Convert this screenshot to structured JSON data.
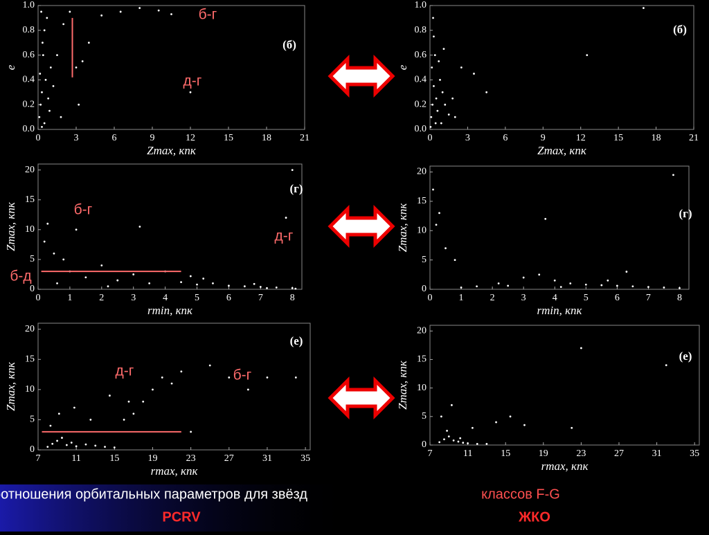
{
  "slide": {
    "title": "Соотношения орбитальных параметров для звёзд",
    "title_highlight": "классов F-G",
    "labels": [
      "PCRV",
      "ЖКО"
    ]
  },
  "chart_data": [
    {
      "type": "scatter",
      "panel": "(б)",
      "xlabel": "Zmax, кпк",
      "ylabel": "e",
      "color": "#ffffff",
      "xlim": [
        0,
        21
      ],
      "ylim": [
        0,
        1
      ],
      "xticks": [
        0,
        3,
        6,
        9,
        12,
        15,
        18,
        21
      ],
      "yticks": [
        {
          "value": 0,
          "label": "0.0"
        },
        0.2,
        0.4,
        0.6,
        0.8,
        {
          "value": 1,
          "label": "1.0"
        }
      ],
      "annotations": [
        "б-г",
        "д-г"
      ],
      "lines": [
        {
          "x": [
            2.7,
            2.7
          ],
          "y": [
            0.42,
            0.9
          ],
          "color": "#ff6b6b"
        }
      ],
      "x": [
        0.1,
        0.2,
        0.3,
        0.15,
        0.4,
        0.5,
        0.25,
        0.6,
        0.8,
        1.0,
        0.35,
        0.7,
        1.2,
        1.5,
        0.9,
        2.0,
        2.5,
        3.0,
        3.5,
        4.0,
        3.2,
        5.0,
        6.5,
        8.0,
        9.5,
        10.5,
        12.0,
        0.5,
        1.8,
        0.3
      ],
      "y": [
        0.1,
        0.2,
        0.3,
        0.45,
        0.6,
        0.8,
        0.95,
        0.4,
        0.25,
        0.5,
        0.7,
        0.9,
        0.35,
        0.6,
        0.15,
        0.85,
        0.95,
        0.5,
        0.55,
        0.7,
        0.2,
        0.92,
        0.95,
        0.98,
        0.96,
        0.93,
        0.3,
        0.05,
        0.1,
        0.02
      ]
    },
    {
      "type": "scatter",
      "panel": "(б)",
      "xlabel": "Zmax, кпк",
      "ylabel": "e",
      "color": "#ffffff",
      "xlim": [
        0,
        21
      ],
      "ylim": [
        0,
        1
      ],
      "xticks": [
        0,
        3,
        6,
        9,
        12,
        15,
        18,
        21
      ],
      "yticks": [
        {
          "value": 0,
          "label": "0.0"
        },
        0.2,
        0.4,
        0.6,
        0.8,
        {
          "value": 1,
          "label": "1.0"
        }
      ],
      "x": [
        0.1,
        0.2,
        0.3,
        0.15,
        0.4,
        0.5,
        0.6,
        0.8,
        1.0,
        1.2,
        1.5,
        2.0,
        0.3,
        0.7,
        2.5,
        3.5,
        0.9,
        1.1,
        0.25,
        4.5,
        12.5,
        17,
        0.05,
        0.45,
        1.8
      ],
      "y": [
        0.1,
        0.2,
        0.35,
        0.5,
        0.6,
        0.25,
        0.15,
        0.4,
        0.3,
        0.2,
        0.12,
        0.1,
        0.75,
        0.55,
        0.5,
        0.45,
        0.05,
        0.65,
        0.9,
        0.3,
        0.6,
        0.98,
        0.02,
        0.05,
        0.25
      ]
    },
    {
      "type": "scatter",
      "panel": "(г)",
      "xlabel": "rmin, кпк",
      "ylabel": "Zmax, кпк",
      "color": "#ffffff",
      "xlim": [
        0,
        8.3
      ],
      "ylim": [
        0,
        21
      ],
      "xticks": [
        0,
        1,
        2,
        3,
        4,
        5,
        6,
        7,
        8
      ],
      "yticks": [
        0,
        5,
        10,
        15,
        20
      ],
      "annotations": [
        "б-г",
        "д-г",
        "б-д"
      ],
      "lines": [
        {
          "x": [
            0.1,
            4.5
          ],
          "y": [
            3,
            3
          ],
          "color": "#ff6b6b"
        }
      ],
      "x": [
        0.2,
        0.5,
        1.0,
        1.5,
        2.0,
        2.5,
        3.0,
        3.5,
        4.0,
        4.5,
        5.0,
        5.5,
        6.0,
        6.5,
        7.0,
        7.5,
        8.0,
        8.1,
        0.3,
        0.8,
        1.2,
        3.2,
        7.8,
        6.8,
        5.2,
        4.8,
        2.2,
        0.6,
        7.2,
        8.0
      ],
      "y": [
        8,
        6,
        3,
        2,
        4,
        1.5,
        2.5,
        1,
        3,
        1.2,
        0.8,
        1.0,
        0.6,
        0.5,
        0.4,
        0.3,
        0.2,
        0.1,
        11,
        5,
        10,
        10.5,
        12,
        0.9,
        1.8,
        2.2,
        0.5,
        1,
        0.2,
        20
      ]
    },
    {
      "type": "scatter",
      "panel": "(г)",
      "xlabel": "rmin, кпк",
      "ylabel": "Zmax, кпк",
      "color": "#ffffff",
      "xlim": [
        0,
        8.3
      ],
      "ylim": [
        0,
        21
      ],
      "xticks": [
        0,
        1,
        2,
        3,
        4,
        5,
        6,
        7,
        8
      ],
      "yticks": [
        0,
        5,
        10,
        15,
        20
      ],
      "x": [
        0.1,
        0.3,
        0.5,
        0.8,
        1.5,
        2.2,
        3.0,
        3.5,
        4.0,
        4.5,
        5.0,
        5.5,
        6.0,
        6.5,
        7.0,
        7.5,
        8.0,
        0.2,
        2.5,
        3.7,
        5.7,
        7.8,
        4.2,
        6.3,
        1.0
      ],
      "y": [
        17,
        13,
        7,
        5,
        0.5,
        1,
        2,
        2.5,
        1.5,
        1,
        0.8,
        0.7,
        0.6,
        0.5,
        0.4,
        0.3,
        0.2,
        11,
        0.6,
        12,
        1.5,
        19.5,
        0.4,
        3,
        0.3
      ]
    },
    {
      "type": "scatter",
      "panel": "(е)",
      "xlabel": "rmax, кпк",
      "ylabel": "Zmax, кпк",
      "color": "#ffffff",
      "xlim": [
        7,
        35.5
      ],
      "ylim": [
        0,
        21
      ],
      "xticks": [
        7,
        11,
        15,
        19,
        23,
        27,
        31,
        35
      ],
      "yticks": [
        0,
        5,
        10,
        15,
        20
      ],
      "annotations": [
        "д-г",
        "б-г"
      ],
      "lines": [
        {
          "x": [
            7.4,
            22
          ],
          "y": [
            3,
            3
          ],
          "color": "#ff6b6b"
        }
      ],
      "x": [
        8,
        8.5,
        9,
        9.5,
        10,
        10.5,
        11,
        12,
        13,
        14,
        15,
        16,
        17,
        18,
        19,
        20,
        22,
        23,
        25,
        27,
        29,
        31,
        34,
        8.3,
        9.2,
        10.8,
        12.5,
        14.5,
        16.5,
        21
      ],
      "y": [
        0.5,
        1,
        1.5,
        2,
        0.8,
        1.2,
        0.6,
        0.9,
        0.7,
        0.5,
        0.4,
        5,
        6,
        8,
        10,
        12,
        13,
        3,
        14,
        12,
        10,
        12,
        12,
        4,
        6,
        7,
        5,
        9,
        8,
        11
      ]
    },
    {
      "type": "scatter",
      "panel": "(е)",
      "xlabel": "rmax, кпк",
      "ylabel": "Zmax, кпк",
      "color": "#ffffff",
      "xlim": [
        7,
        35.5
      ],
      "ylim": [
        0,
        21
      ],
      "xticks": [
        7,
        11,
        15,
        19,
        23,
        27,
        31,
        35
      ],
      "yticks": [
        0,
        5,
        10,
        15,
        20
      ],
      "x": [
        8,
        8.5,
        9,
        9.5,
        10,
        10.5,
        11,
        12,
        13,
        8.2,
        9.3,
        11.5,
        14,
        15.5,
        17,
        22,
        23,
        32,
        8.8,
        10.2
      ],
      "y": [
        0.5,
        1,
        1.5,
        0.8,
        0.6,
        0.4,
        0.3,
        0.2,
        0.2,
        5,
        7,
        3,
        4,
        5,
        3.5,
        3,
        17,
        14,
        2.5,
        1.2
      ]
    }
  ]
}
